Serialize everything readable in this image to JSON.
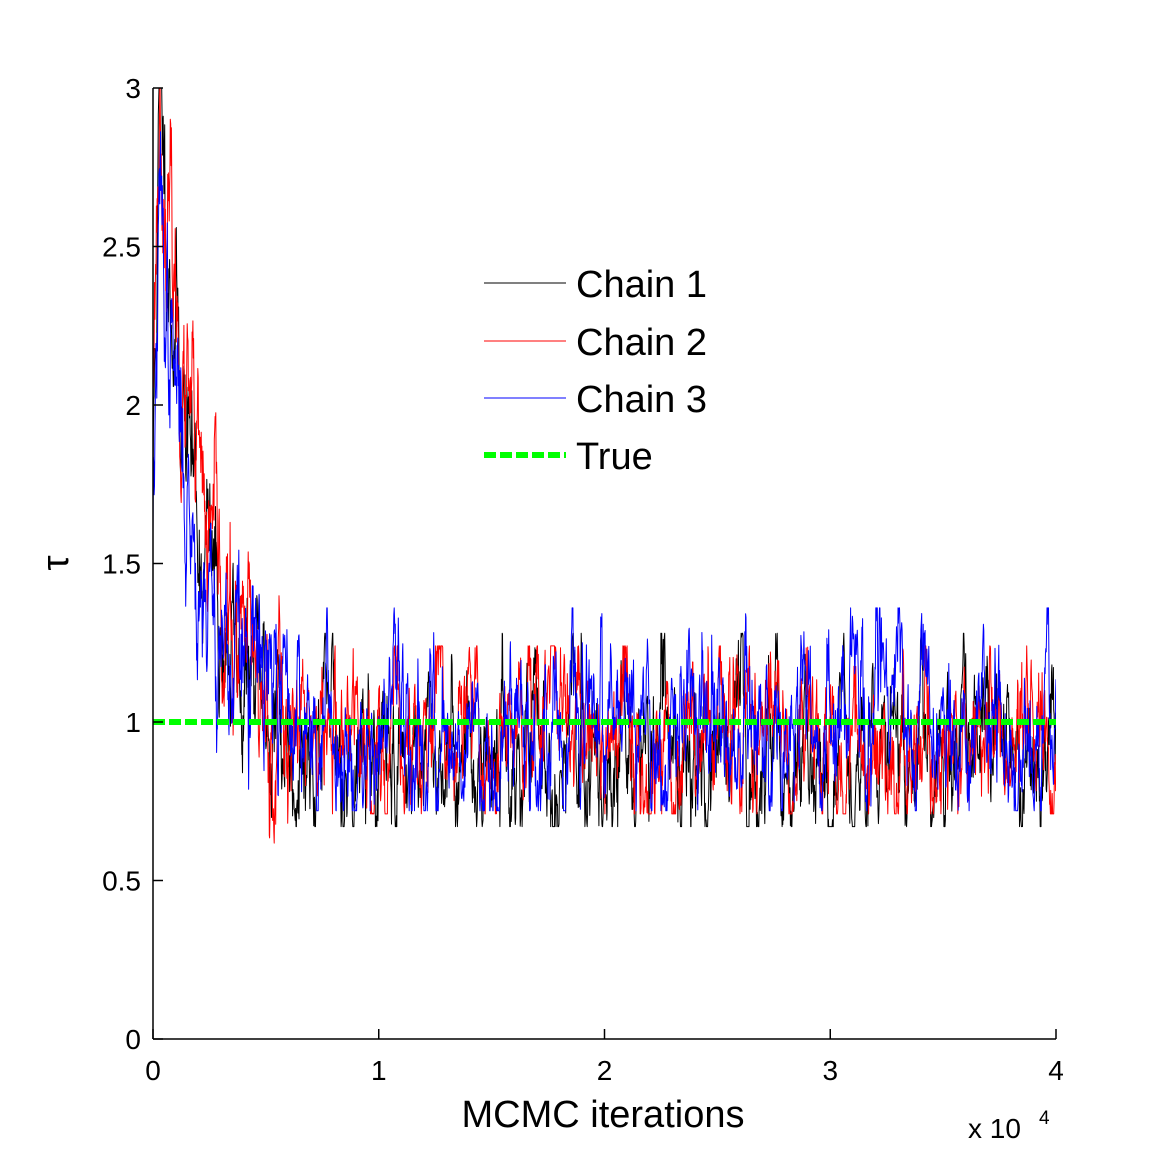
{
  "chart_data": {
    "type": "line",
    "title": "",
    "xlabel": "MCMC iterations",
    "ylabel": "τ",
    "x_multiplier_label": {
      "base": "x 10",
      "exponent": "4"
    },
    "xlim": [
      0,
      40000
    ],
    "ylim": [
      0,
      3
    ],
    "x_ticks": [
      0,
      1,
      2,
      3,
      4
    ],
    "y_ticks": [
      0,
      0.5,
      1,
      1.5,
      2,
      2.5,
      3
    ],
    "x_tick_labels": [
      "0",
      "1",
      "2",
      "3",
      "4"
    ],
    "y_tick_labels": [
      "0",
      "0.5",
      "1",
      "1.5",
      "2",
      "2.5",
      "3"
    ],
    "grid": false,
    "legend_position": "upper-center",
    "series": [
      {
        "name": "Chain 1",
        "color": "#000000",
        "style": "solid",
        "start_value": 1.75,
        "peak_value": 3.0,
        "stationary_mean": 0.9,
        "stationary_range": [
          0.67,
          1.28
        ],
        "burn_in_end": 6000,
        "seed": 11
      },
      {
        "name": "Chain 2",
        "color": "#ff0000",
        "style": "solid",
        "start_value": 2.2,
        "peak_value": 3.0,
        "stationary_mean": 0.93,
        "stationary_range": [
          0.71,
          1.24
        ],
        "burn_in_end": 6000,
        "seed": 23
      },
      {
        "name": "Chain 3",
        "color": "#0000ff",
        "style": "solid",
        "start_value": 1.7,
        "peak_value": 2.55,
        "stationary_mean": 0.98,
        "stationary_range": [
          0.72,
          1.36
        ],
        "burn_in_end": 6000,
        "seed": 37
      },
      {
        "name": "True",
        "color": "#00ff00",
        "style": "dashed",
        "x": [
          0,
          40000
        ],
        "y": [
          1,
          1
        ]
      }
    ]
  }
}
